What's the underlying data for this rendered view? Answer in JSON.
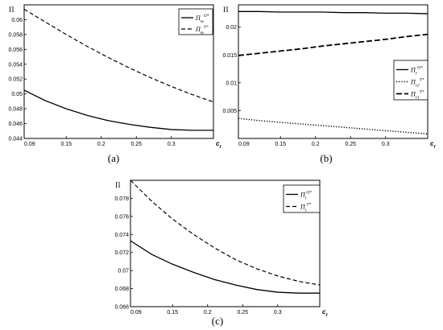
{
  "chart_data": [
    {
      "type": "line",
      "caption": "(a)",
      "xlabel": "c_r",
      "ylabel": "Π",
      "xlim": [
        0.09,
        0.36
      ],
      "ylim": [
        0.044,
        0.062
      ],
      "x_ticks": [
        "0.09",
        "0.15",
        "0.2",
        "0.25",
        "0.3"
      ],
      "x_tick_values": [
        0.09,
        0.15,
        0.2,
        0.25,
        0.3
      ],
      "y_ticks": [
        "0.044",
        "0.046",
        "0.048",
        "0.05",
        "0.052",
        "0.054",
        "0.056",
        "0.058",
        "0.06"
      ],
      "y_tick_values": [
        0.044,
        0.046,
        0.048,
        0.05,
        0.052,
        0.054,
        0.056,
        0.058,
        0.06
      ],
      "legend_position": "top-right",
      "x": [
        0.09,
        0.12,
        0.15,
        0.18,
        0.21,
        0.24,
        0.27,
        0.3,
        0.33,
        0.36
      ],
      "series": [
        {
          "name": "Π_m^{O*}",
          "legend_base": "Π",
          "legend_sub": "m",
          "legend_sup": "O*",
          "style": "solid",
          "values": [
            0.0505,
            0.0491,
            0.048,
            0.0471,
            0.0464,
            0.0459,
            0.0455,
            0.0452,
            0.0451,
            0.0451
          ]
        },
        {
          "name": "Π_m^{T*}",
          "legend_base": "Π",
          "legend_sub": "m",
          "legend_sup": "T*",
          "style": "dashed",
          "values": [
            0.0614,
            0.0597,
            0.058,
            0.0564,
            0.0549,
            0.0535,
            0.0522,
            0.051,
            0.0499,
            0.0489
          ]
        }
      ]
    },
    {
      "type": "line",
      "caption": "(b)",
      "xlabel": "c_r",
      "ylabel": "Π",
      "xlim": [
        0.09,
        0.36
      ],
      "ylim": [
        0,
        0.024
      ],
      "x_ticks": [
        "0.09",
        "0.15",
        "0.2",
        "0.25",
        "0.3"
      ],
      "x_tick_values": [
        0.09,
        0.15,
        0.2,
        0.25,
        0.3
      ],
      "y_ticks": [
        "0.005",
        "0.01",
        "0.015",
        "0.02"
      ],
      "y_tick_values": [
        0.005,
        0.01,
        0.015,
        0.02
      ],
      "legend_position": "right",
      "x": [
        0.09,
        0.12,
        0.15,
        0.18,
        0.21,
        0.24,
        0.27,
        0.3,
        0.33,
        0.36
      ],
      "series": [
        {
          "name": "Π_r^{O*}",
          "legend_base": "Π",
          "legend_sub": "r",
          "legend_sup": "O*",
          "style": "solid",
          "values": [
            0.0228,
            0.0228,
            0.0227,
            0.0227,
            0.0227,
            0.0226,
            0.0226,
            0.0225,
            0.0225,
            0.0224
          ]
        },
        {
          "name": "Π_{r2}^{T*}",
          "legend_base": "Π",
          "legend_sub": "r2",
          "legend_sup": "T*",
          "style": "dotted",
          "values": [
            0.0036,
            0.0032,
            0.0029,
            0.0026,
            0.0023,
            0.002,
            0.0017,
            0.0014,
            0.0011,
            0.0008
          ]
        },
        {
          "name": "Π_{r1}^{T*}",
          "legend_base": "Π",
          "legend_sub": "r1",
          "legend_sup": "T*",
          "style": "longdash",
          "values": [
            0.0149,
            0.0153,
            0.0157,
            0.0161,
            0.0166,
            0.017,
            0.0174,
            0.0178,
            0.0183,
            0.0187
          ]
        }
      ]
    },
    {
      "type": "line",
      "caption": "(c)",
      "xlabel": "c_r",
      "ylabel": "Π",
      "xlim": [
        0.09,
        0.36
      ],
      "ylim": [
        0.066,
        0.08
      ],
      "x_ticks": [
        "0.09",
        "0.15",
        "0.2",
        "0.25",
        "0.3"
      ],
      "x_tick_values": [
        0.09,
        0.15,
        0.2,
        0.25,
        0.3
      ],
      "y_ticks": [
        "0.066",
        "0.068",
        "0.07",
        "0.072",
        "0.074",
        "0.076",
        "0.078"
      ],
      "y_tick_values": [
        0.066,
        0.068,
        0.07,
        0.072,
        0.074,
        0.076,
        0.078
      ],
      "legend_position": "top-right",
      "x": [
        0.09,
        0.12,
        0.15,
        0.18,
        0.21,
        0.24,
        0.27,
        0.3,
        0.33,
        0.36
      ],
      "series": [
        {
          "name": "Π_t^{O*}",
          "legend_base": "Π",
          "legend_sub": "t",
          "legend_sup": "O*",
          "style": "solid",
          "values": [
            0.0733,
            0.0718,
            0.0707,
            0.0698,
            0.069,
            0.0684,
            0.0679,
            0.0676,
            0.0675,
            0.0675
          ]
        },
        {
          "name": "Π_t^{T*}",
          "legend_base": "Π",
          "legend_sub": "t",
          "legend_sup": "T*",
          "style": "dashed",
          "values": [
            0.08,
            0.0777,
            0.0757,
            0.074,
            0.0725,
            0.0712,
            0.0702,
            0.0694,
            0.0688,
            0.0684
          ]
        }
      ]
    }
  ]
}
